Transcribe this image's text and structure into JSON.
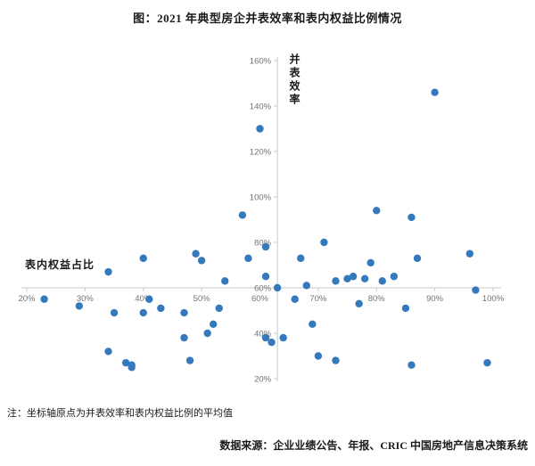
{
  "note": "注：坐标轴原点为并表效率和表内权益比例的平均值",
  "source": "数据来源：企业业绩公告、年报、CRIC 中国房地产信息决策系统",
  "chart_data": {
    "type": "scatter",
    "title": "图：2021 年典型房企并表效率和表内权益比例情况",
    "xlabel": "表内权益占比",
    "ylabel": "并表效率",
    "x_tick_labels": [
      "20%",
      "30%",
      "40%",
      "50%",
      "60%",
      "70%",
      "80%",
      "90%",
      "100%"
    ],
    "y_tick_labels": [
      "20%",
      "40%",
      "60%",
      "80%",
      "100%",
      "120%",
      "140%",
      "160%"
    ],
    "x_range": [
      20,
      100
    ],
    "y_range": [
      20,
      160
    ],
    "origin": {
      "x": 63,
      "y": 60
    },
    "grid": false,
    "legend": "none",
    "dot_color": "#3579bd",
    "axis_color": "#c9c9c9",
    "tick_label_color": "#737373",
    "points": [
      [
        23,
        55
      ],
      [
        29,
        52
      ],
      [
        34,
        67
      ],
      [
        34,
        32
      ],
      [
        35,
        49
      ],
      [
        37,
        27
      ],
      [
        38,
        25
      ],
      [
        38,
        26
      ],
      [
        40,
        73
      ],
      [
        40,
        49
      ],
      [
        41,
        55
      ],
      [
        43,
        51
      ],
      [
        47,
        49
      ],
      [
        47,
        38
      ],
      [
        48,
        28
      ],
      [
        49,
        75
      ],
      [
        50,
        72
      ],
      [
        51,
        40
      ],
      [
        52,
        44
      ],
      [
        53,
        51
      ],
      [
        54,
        63
      ],
      [
        57,
        92
      ],
      [
        58,
        73
      ],
      [
        60,
        130
      ],
      [
        61,
        78
      ],
      [
        61,
        65
      ],
      [
        61,
        38
      ],
      [
        62,
        36
      ],
      [
        63,
        60
      ],
      [
        64,
        38
      ],
      [
        66,
        55
      ],
      [
        67,
        73
      ],
      [
        68,
        61
      ],
      [
        69,
        44
      ],
      [
        70,
        30
      ],
      [
        71,
        80
      ],
      [
        73,
        63
      ],
      [
        73,
        28
      ],
      [
        75,
        64
      ],
      [
        76,
        65
      ],
      [
        77,
        53
      ],
      [
        78,
        64
      ],
      [
        79,
        71
      ],
      [
        80,
        94
      ],
      [
        81,
        63
      ],
      [
        83,
        65
      ],
      [
        85,
        51
      ],
      [
        86,
        91
      ],
      [
        86,
        26
      ],
      [
        87,
        73
      ],
      [
        90,
        146
      ],
      [
        96,
        75
      ],
      [
        97,
        59
      ],
      [
        99,
        27
      ]
    ]
  }
}
